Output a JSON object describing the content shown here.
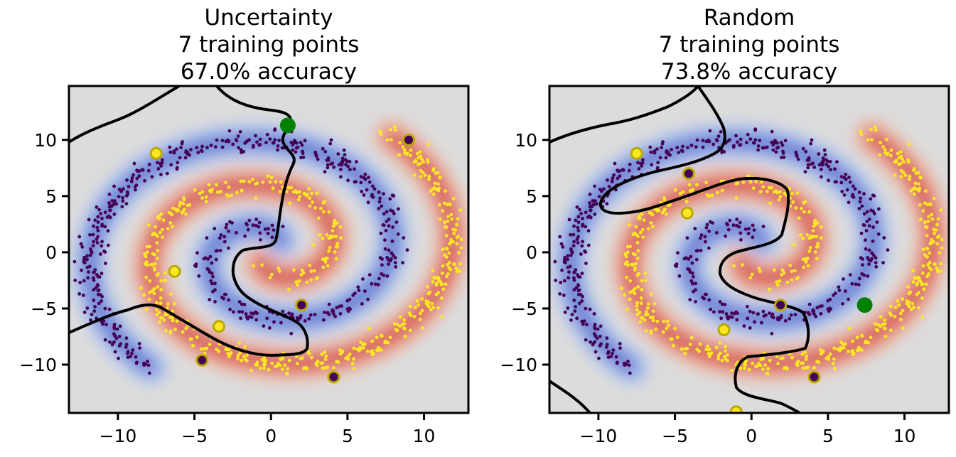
{
  "chart_data": [
    {
      "type": "scatter",
      "title": [
        "Uncertainty",
        "7 training points",
        "67.0% accuracy"
      ],
      "xlim": [
        -13.2,
        12.9
      ],
      "ylim": [
        -14.3,
        14.8
      ],
      "xticks": [
        -10,
        -5,
        0,
        5,
        10
      ],
      "yticks": [
        -10,
        -5,
        0,
        5,
        10
      ],
      "xtick_labels": [
        "−10",
        "−5",
        "0",
        "5",
        "10"
      ],
      "ytick_labels": [
        "−10",
        "−5",
        "0",
        "5",
        "10"
      ],
      "grid": false,
      "series": [
        {
          "class": "yellow",
          "description": "class-1 spiral points"
        },
        {
          "class": "purple",
          "description": "class-0 spiral points"
        }
      ],
      "labeled_points": [
        {
          "x": -7.5,
          "y": 8.8,
          "class": "yellow"
        },
        {
          "x": -6.3,
          "y": -1.7,
          "class": "yellow"
        },
        {
          "x": -3.4,
          "y": -6.6,
          "class": "yellow"
        },
        {
          "x": 9.0,
          "y": 10.0,
          "class": "purple"
        },
        {
          "x": 2.0,
          "y": -4.7,
          "class": "purple"
        },
        {
          "x": -4.5,
          "y": -9.6,
          "class": "purple"
        },
        {
          "x": 4.1,
          "y": -11.1,
          "class": "purple"
        }
      ],
      "next_query": {
        "x": 1.1,
        "y": 11.3
      },
      "colors": {
        "class_yellow": "#fde725",
        "class_purple": "#440154",
        "query": "#008000",
        "labeled_ring": "#b8a800"
      }
    },
    {
      "type": "scatter",
      "title": [
        "Random",
        "7 training points",
        "73.8% accuracy"
      ],
      "xlim": [
        -13.2,
        12.9
      ],
      "ylim": [
        -14.3,
        14.8
      ],
      "xticks": [
        -10,
        -5,
        0,
        5,
        10
      ],
      "yticks": [
        -10,
        -5,
        0,
        5,
        10
      ],
      "xtick_labels": [
        "−10",
        "−5",
        "0",
        "5",
        "10"
      ],
      "ytick_labels": [
        "−10",
        "−5",
        "0",
        "5",
        "10"
      ],
      "grid": false,
      "series": [
        {
          "class": "yellow",
          "description": "class-1 spiral points"
        },
        {
          "class": "purple",
          "description": "class-0 spiral points"
        }
      ],
      "labeled_points": [
        {
          "x": -7.5,
          "y": 8.8,
          "class": "yellow"
        },
        {
          "x": -4.2,
          "y": 3.5,
          "class": "yellow"
        },
        {
          "x": -1.8,
          "y": -6.9,
          "class": "yellow"
        },
        {
          "x": -1.0,
          "y": -14.2,
          "class": "yellow"
        },
        {
          "x": -4.1,
          "y": 7.0,
          "class": "purple"
        },
        {
          "x": 1.9,
          "y": -4.7,
          "class": "purple"
        },
        {
          "x": 4.1,
          "y": -11.1,
          "class": "purple"
        }
      ],
      "next_query": {
        "x": 7.4,
        "y": -4.7
      },
      "colors": {
        "class_yellow": "#fde725",
        "class_purple": "#440154",
        "query": "#008000",
        "labeled_ring": "#b8a800"
      }
    }
  ]
}
